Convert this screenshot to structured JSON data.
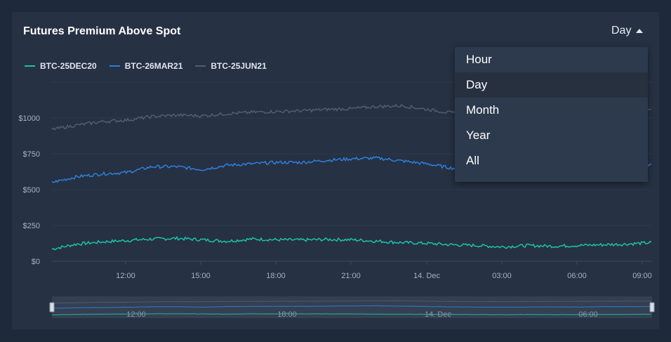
{
  "header": {
    "title": "Futures Premium Above Spot",
    "period_label": "Day"
  },
  "period_menu": {
    "items": [
      "Hour",
      "Day",
      "Month",
      "Year",
      "All"
    ],
    "selected": "Day"
  },
  "chart_data": {
    "type": "line",
    "title": "Futures Premium Above Spot",
    "x_ticks": [
      "12:00",
      "15:00",
      "18:00",
      "21:00",
      "14. Dec",
      "03:00",
      "06:00",
      "09:00"
    ],
    "y_ticks": [
      "$0",
      "$250",
      "$500",
      "$750",
      "$1000"
    ],
    "ylim": [
      0,
      1250
    ],
    "grid": true,
    "legend_position": "top-left",
    "series": [
      {
        "name": "BTC-25DEC20",
        "color": "#1dc2a8",
        "x": [
          "09:00",
          "10:00",
          "11:00",
          "12:00",
          "13:00",
          "14:00",
          "15:00",
          "16:00",
          "17:00",
          "18:00",
          "19:00",
          "20:00",
          "21:00",
          "22:00",
          "23:00",
          "14. Dec",
          "01:00",
          "02:00",
          "03:00",
          "04:00",
          "05:00",
          "06:00",
          "07:00",
          "08:00",
          "09:00"
        ],
        "values": [
          85,
          120,
          135,
          145,
          155,
          160,
          150,
          140,
          155,
          150,
          148,
          152,
          150,
          140,
          130,
          125,
          115,
          110,
          100,
          110,
          105,
          110,
          115,
          120,
          130
        ]
      },
      {
        "name": "BTC-26MAR21",
        "color": "#2e7fdc",
        "x": [
          "09:00",
          "10:00",
          "11:00",
          "12:00",
          "13:00",
          "14:00",
          "15:00",
          "16:00",
          "17:00",
          "18:00",
          "19:00",
          "20:00",
          "21:00",
          "22:00",
          "23:00",
          "14. Dec",
          "01:00",
          "02:00",
          "03:00",
          "04:00",
          "05:00",
          "06:00",
          "07:00",
          "08:00",
          "09:00"
        ],
        "values": [
          550,
          590,
          610,
          620,
          660,
          660,
          640,
          670,
          680,
          690,
          690,
          705,
          715,
          720,
          700,
          680,
          650,
          640,
          630,
          640,
          650,
          640,
          660,
          670,
          670
        ]
      },
      {
        "name": "BTC-25JUN21",
        "color": "#535d6b",
        "x": [
          "09:00",
          "10:00",
          "11:00",
          "12:00",
          "13:00",
          "14:00",
          "15:00",
          "16:00",
          "17:00",
          "18:00",
          "19:00",
          "20:00",
          "21:00",
          "22:00",
          "23:00",
          "14. Dec",
          "01:00",
          "02:00",
          "03:00",
          "04:00",
          "05:00",
          "06:00",
          "07:00",
          "08:00",
          "09:00"
        ],
        "values": [
          920,
          950,
          975,
          985,
          1010,
          1020,
          1015,
          1030,
          1040,
          1045,
          1050,
          1060,
          1065,
          1080,
          1085,
          1060,
          1035,
          1025,
          1020,
          1030,
          1040,
          1045,
          1050,
          1060,
          1060
        ]
      }
    ],
    "navigator": {
      "x_ticks": [
        "12:00",
        "18:00",
        "14. Dec",
        "06:00"
      ]
    }
  }
}
